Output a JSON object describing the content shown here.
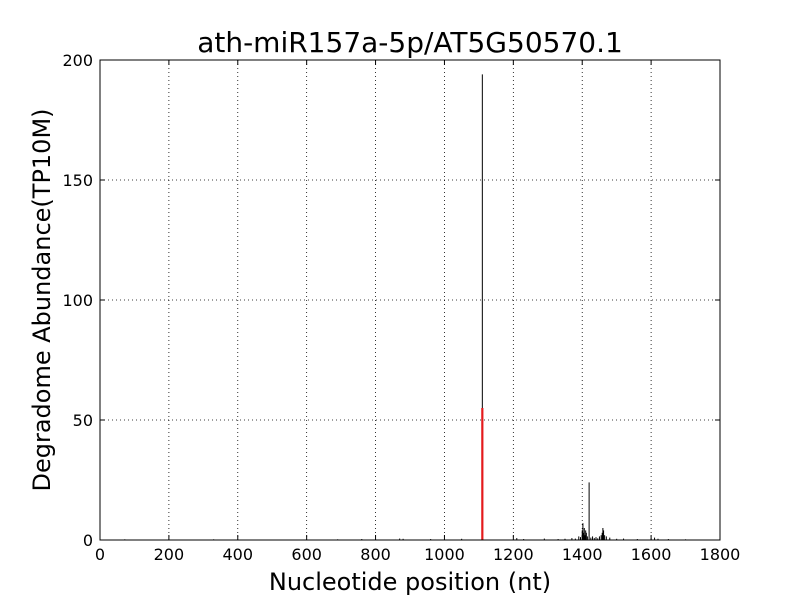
{
  "chart_data": {
    "type": "bar",
    "title": "ath-miR157a-5p/AT5G50570.1",
    "xlabel": "Nucleotide position (nt)",
    "ylabel": "Degradome Abundance(TP10M)",
    "xlim": [
      0,
      1800
    ],
    "ylim": [
      0,
      200
    ],
    "xticks": [
      "0",
      "200",
      "400",
      "600",
      "800",
      "1000",
      "1200",
      "1400",
      "1600",
      "1800"
    ],
    "yticks": [
      "0",
      "50",
      "100",
      "150",
      "200"
    ],
    "grid": true,
    "series": [
      {
        "color": "#000000",
        "x": [
          72,
          160,
          330,
          480,
          690,
          760,
          870,
          880,
          960,
          1050,
          1110,
          1210,
          1230,
          1290,
          1330,
          1350,
          1370,
          1380,
          1390,
          1395,
          1400,
          1402,
          1404,
          1406,
          1408,
          1410,
          1412,
          1415,
          1420,
          1425,
          1430,
          1435,
          1440,
          1445,
          1450,
          1455,
          1458,
          1460,
          1462,
          1465,
          1470,
          1480,
          1500,
          1520,
          1560,
          1600,
          1610,
          1620,
          1650,
          1700
        ],
        "y": [
          0.3,
          0.2,
          0.3,
          0.2,
          0.3,
          0.4,
          0.6,
          0.5,
          0.4,
          0.5,
          194,
          0.8,
          0.4,
          0.6,
          0.4,
          0.5,
          0.8,
          0.6,
          1.5,
          1.2,
          4,
          7,
          3,
          5,
          2,
          4,
          3,
          1.5,
          24,
          1,
          1.5,
          0.8,
          1.2,
          0.7,
          1.5,
          2,
          3,
          5,
          4,
          2,
          1.5,
          1,
          0.5,
          0.6,
          0.4,
          0.7,
          1,
          0.5,
          0.4,
          0.3
        ]
      },
      {
        "color": "#e41a1c",
        "x": [
          1110
        ],
        "y": [
          55
        ]
      }
    ]
  }
}
